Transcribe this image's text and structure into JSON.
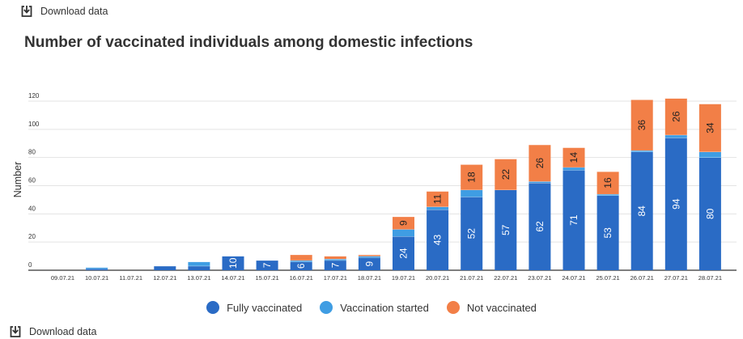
{
  "download_top": {
    "label": "Download data"
  },
  "download_bottom": {
    "label": "Download data"
  },
  "colors": {
    "fully": "#2a6bc5",
    "started": "#3f9de3",
    "not": "#f27f47",
    "text": "#333333"
  },
  "chart_data": {
    "type": "bar",
    "stacked": true,
    "title": "Number of vaccinated individuals among domestic infections",
    "xlabel": "",
    "ylabel": "Number",
    "ylim": [
      0,
      120
    ],
    "yticks": [
      0,
      20,
      40,
      60,
      80,
      100,
      120
    ],
    "categories": [
      "09.07.21",
      "10.07.21",
      "11.07.21",
      "12.07.21",
      "13.07.21",
      "14.07.21",
      "15.07.21",
      "16.07.21",
      "17.07.21",
      "18.07.21",
      "19.07.21",
      "20.07.21",
      "21.07.21",
      "22.07.21",
      "23.07.21",
      "24.07.21",
      "25.07.21",
      "26.07.21",
      "27.07.21",
      "28.07.21"
    ],
    "series": [
      {
        "name": "Fully vaccinated",
        "values": [
          0,
          1,
          0,
          3,
          3,
          10,
          7,
          6,
          7,
          9,
          24,
          43,
          52,
          57,
          62,
          71,
          53,
          84,
          94,
          80
        ]
      },
      {
        "name": "Vaccination started",
        "values": [
          0,
          1,
          0,
          0,
          3,
          0,
          0,
          1,
          1,
          1,
          5,
          2,
          5,
          0,
          1,
          2,
          1,
          1,
          2,
          4
        ]
      },
      {
        "name": "Not vaccinated",
        "values": [
          0,
          0,
          0,
          0,
          0,
          0,
          0,
          4,
          2,
          1,
          9,
          11,
          18,
          22,
          26,
          14,
          16,
          36,
          26,
          34
        ]
      }
    ],
    "bar_labels": {
      "Fully vaccinated": [
        null,
        null,
        null,
        null,
        null,
        "10",
        "7",
        "6",
        "7",
        "9",
        "24",
        "43",
        "52",
        "57",
        "62",
        "71",
        "53",
        "84",
        "94",
        "80"
      ],
      "Not vaccinated": [
        null,
        null,
        null,
        null,
        null,
        null,
        null,
        null,
        null,
        null,
        "9",
        "11",
        "18",
        "22",
        "26",
        "14",
        "16",
        "36",
        "26",
        "34"
      ]
    },
    "legend": [
      "Fully vaccinated",
      "Vaccination started",
      "Not vaccinated"
    ],
    "grid": true,
    "legend_position": "bottom"
  }
}
